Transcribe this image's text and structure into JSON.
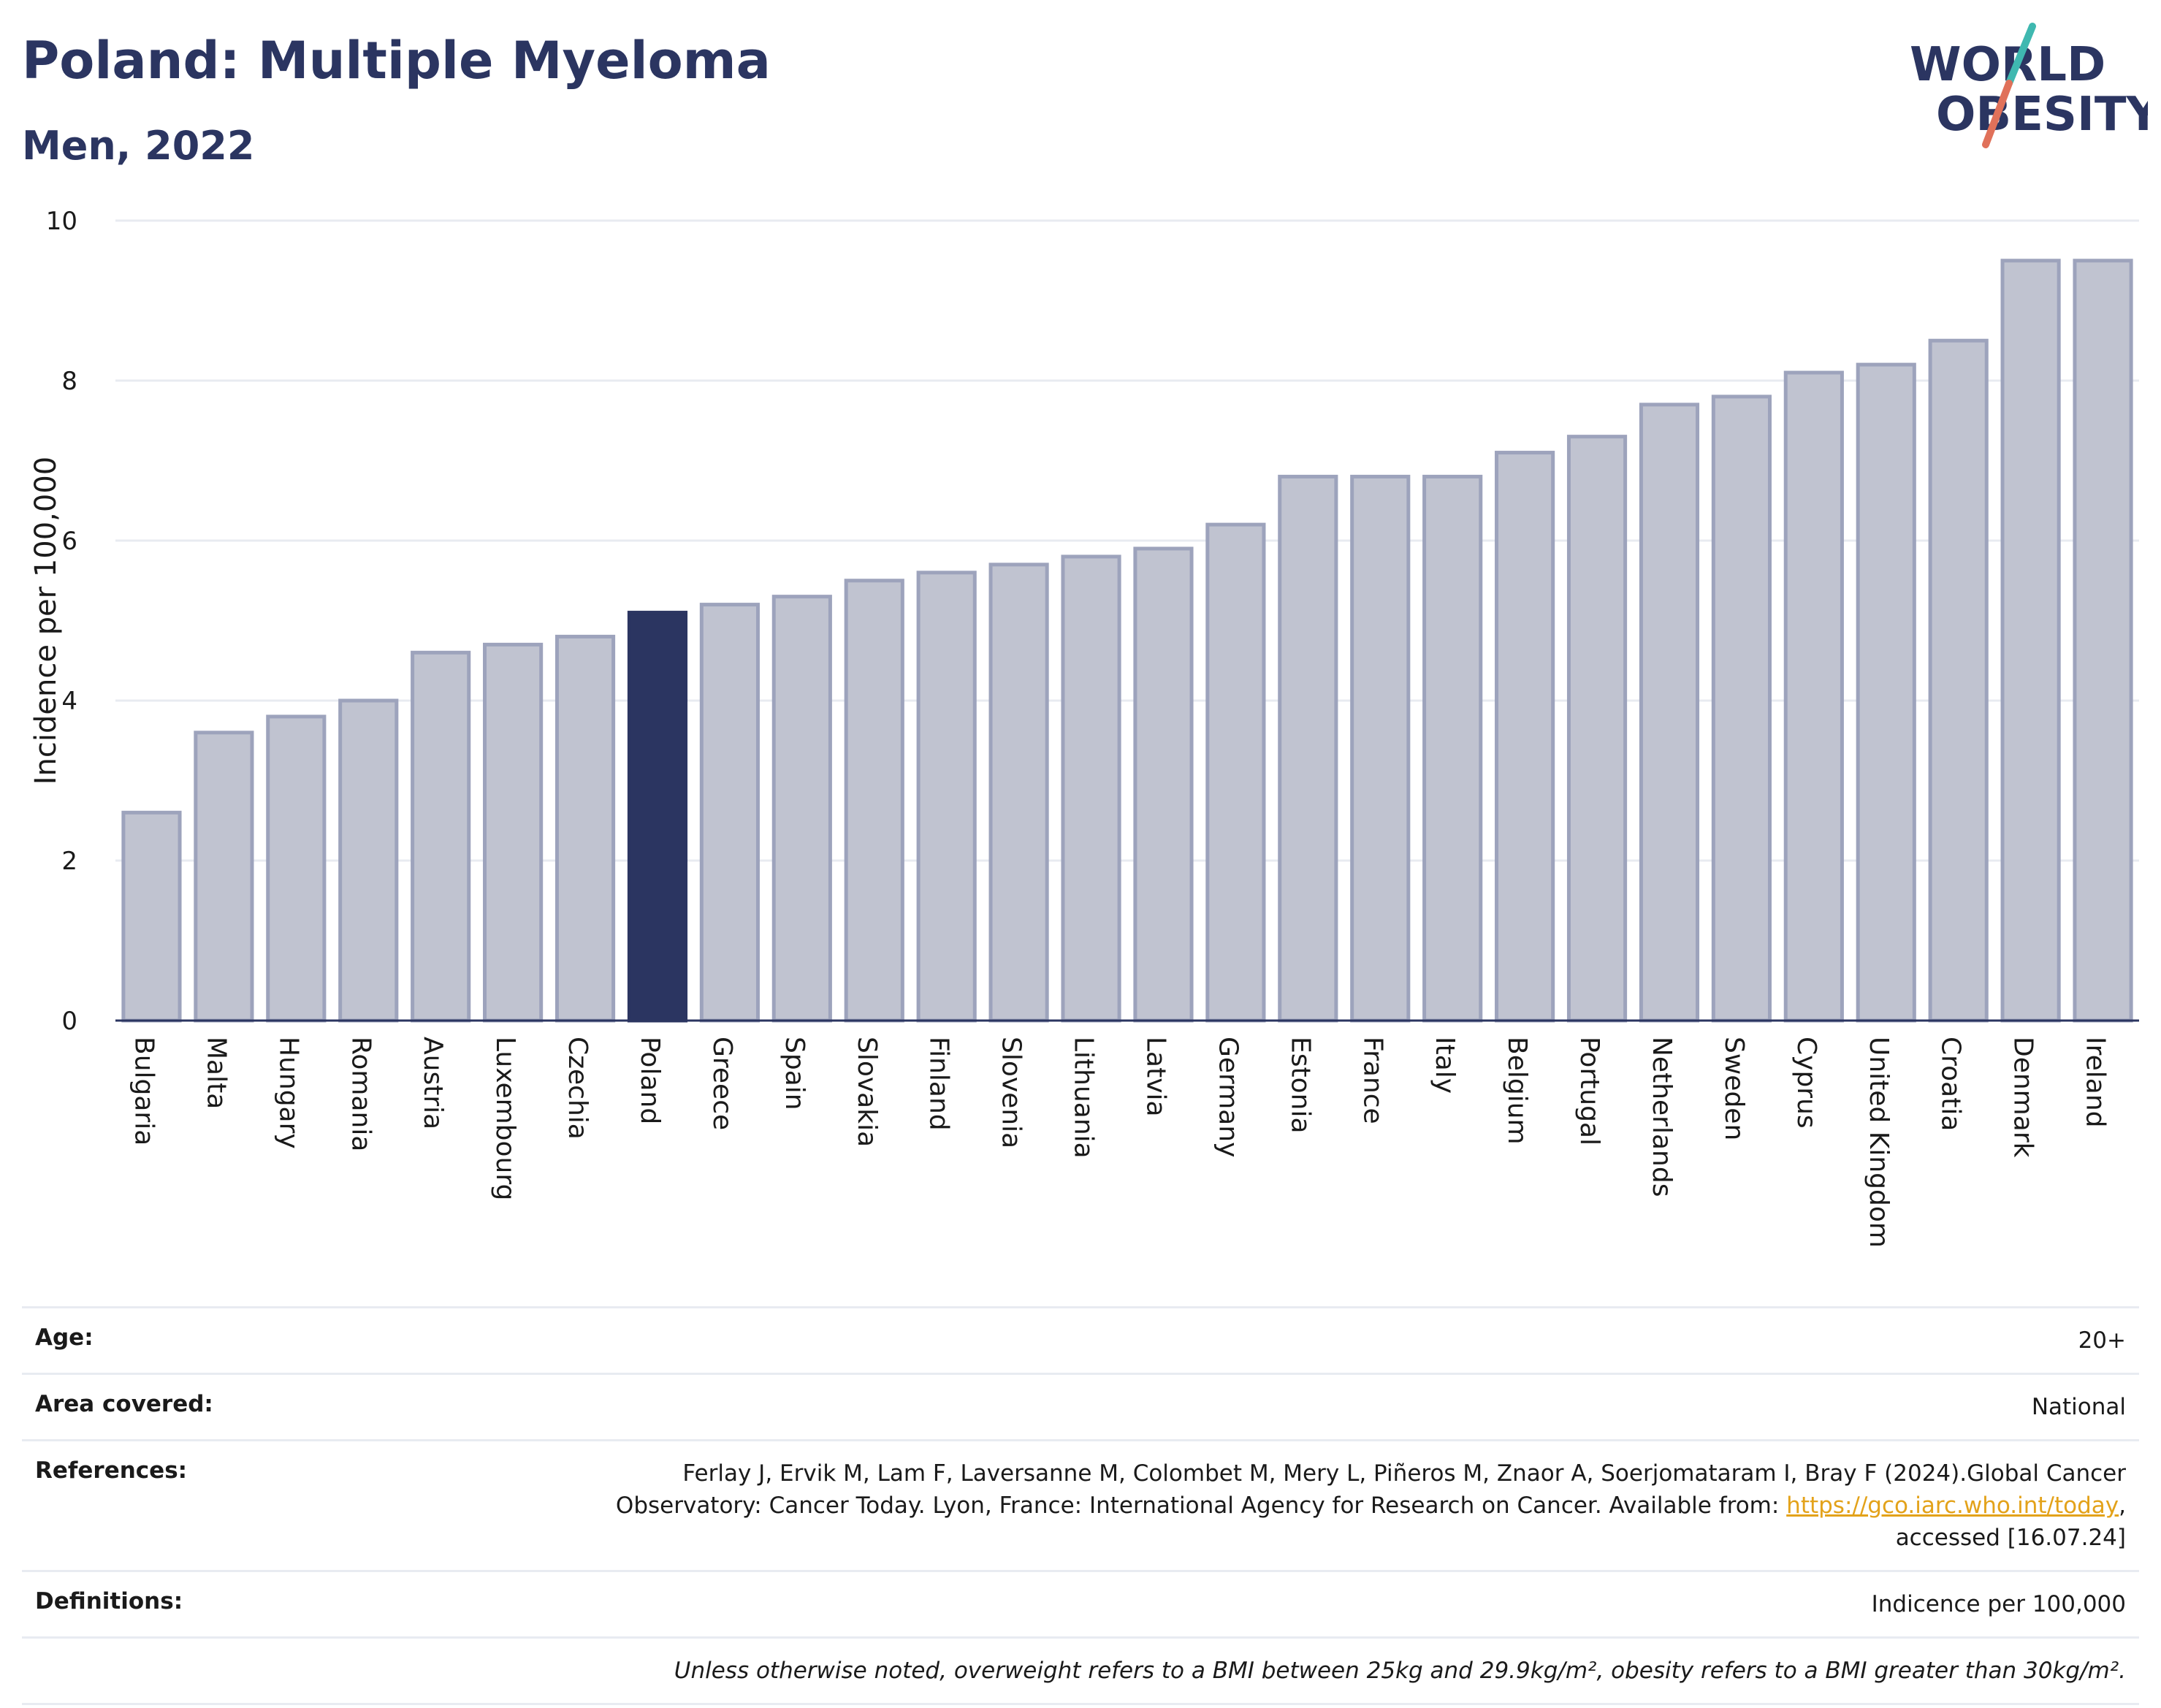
{
  "header": {
    "title": "Poland: Multiple Myeloma",
    "subtitle": "Men, 2022"
  },
  "logo": {
    "line1": "WORLD",
    "line2": "OBESITY",
    "colors": {
      "text": "#2b3561",
      "slash_teal": "#3fb8b0",
      "slash_red": "#e0715a"
    }
  },
  "chart_data": {
    "type": "bar",
    "ylabel": "Incidence per 100,000",
    "ylim": [
      0,
      10
    ],
    "yticks": [
      0,
      2,
      4,
      6,
      8,
      10
    ],
    "grid": true,
    "highlight": "Poland",
    "colors": {
      "bar": "#c0c3d0",
      "bar_edge": "#9da3bc",
      "highlight": "#2b3561",
      "axis": "#2b3561",
      "grid": "#e8ebf1"
    },
    "categories": [
      "Bulgaria",
      "Malta",
      "Hungary",
      "Romania",
      "Austria",
      "Luxembourg",
      "Czechia",
      "Poland",
      "Greece",
      "Spain",
      "Slovakia",
      "Finland",
      "Slovenia",
      "Lithuania",
      "Latvia",
      "Germany",
      "Estonia",
      "France",
      "Italy",
      "Belgium",
      "Portugal",
      "Netherlands",
      "Sweden",
      "Cyprus",
      "United Kingdom",
      "Croatia",
      "Denmark",
      "Ireland"
    ],
    "values": [
      2.6,
      3.6,
      3.8,
      4.0,
      4.6,
      4.7,
      4.8,
      5.1,
      5.2,
      5.3,
      5.5,
      5.6,
      5.7,
      5.8,
      5.9,
      6.2,
      6.8,
      6.8,
      6.8,
      7.1,
      7.3,
      7.7,
      7.8,
      8.1,
      8.2,
      8.5,
      9.5,
      9.5
    ]
  },
  "info": {
    "age_label": "Age:",
    "age_value": "20+",
    "area_label": "Area covered:",
    "area_value": "National",
    "references_label": "References:",
    "references_line1": "Ferlay J, Ervik M, Lam F, Laversanne M, Colombet M, Mery L, Piñeros M, Znaor A, Soerjomataram I, Bray F (2024).Global Cancer",
    "references_line2": "Observatory: Cancer Today. Lyon, France: International Agency for Research on Cancer. Available from: ",
    "references_link": "https://gco.iarc.who.int/today",
    "references_line2_end": ",",
    "references_line3": "accessed [16.07.24]",
    "definitions_label": "Definitions:",
    "definitions_value": "Indicence per 100,000",
    "note": "Unless otherwise noted, overweight refers to a BMI between 25kg and 29.9kg/m², obesity refers to a BMI greater than 30kg/m²."
  }
}
